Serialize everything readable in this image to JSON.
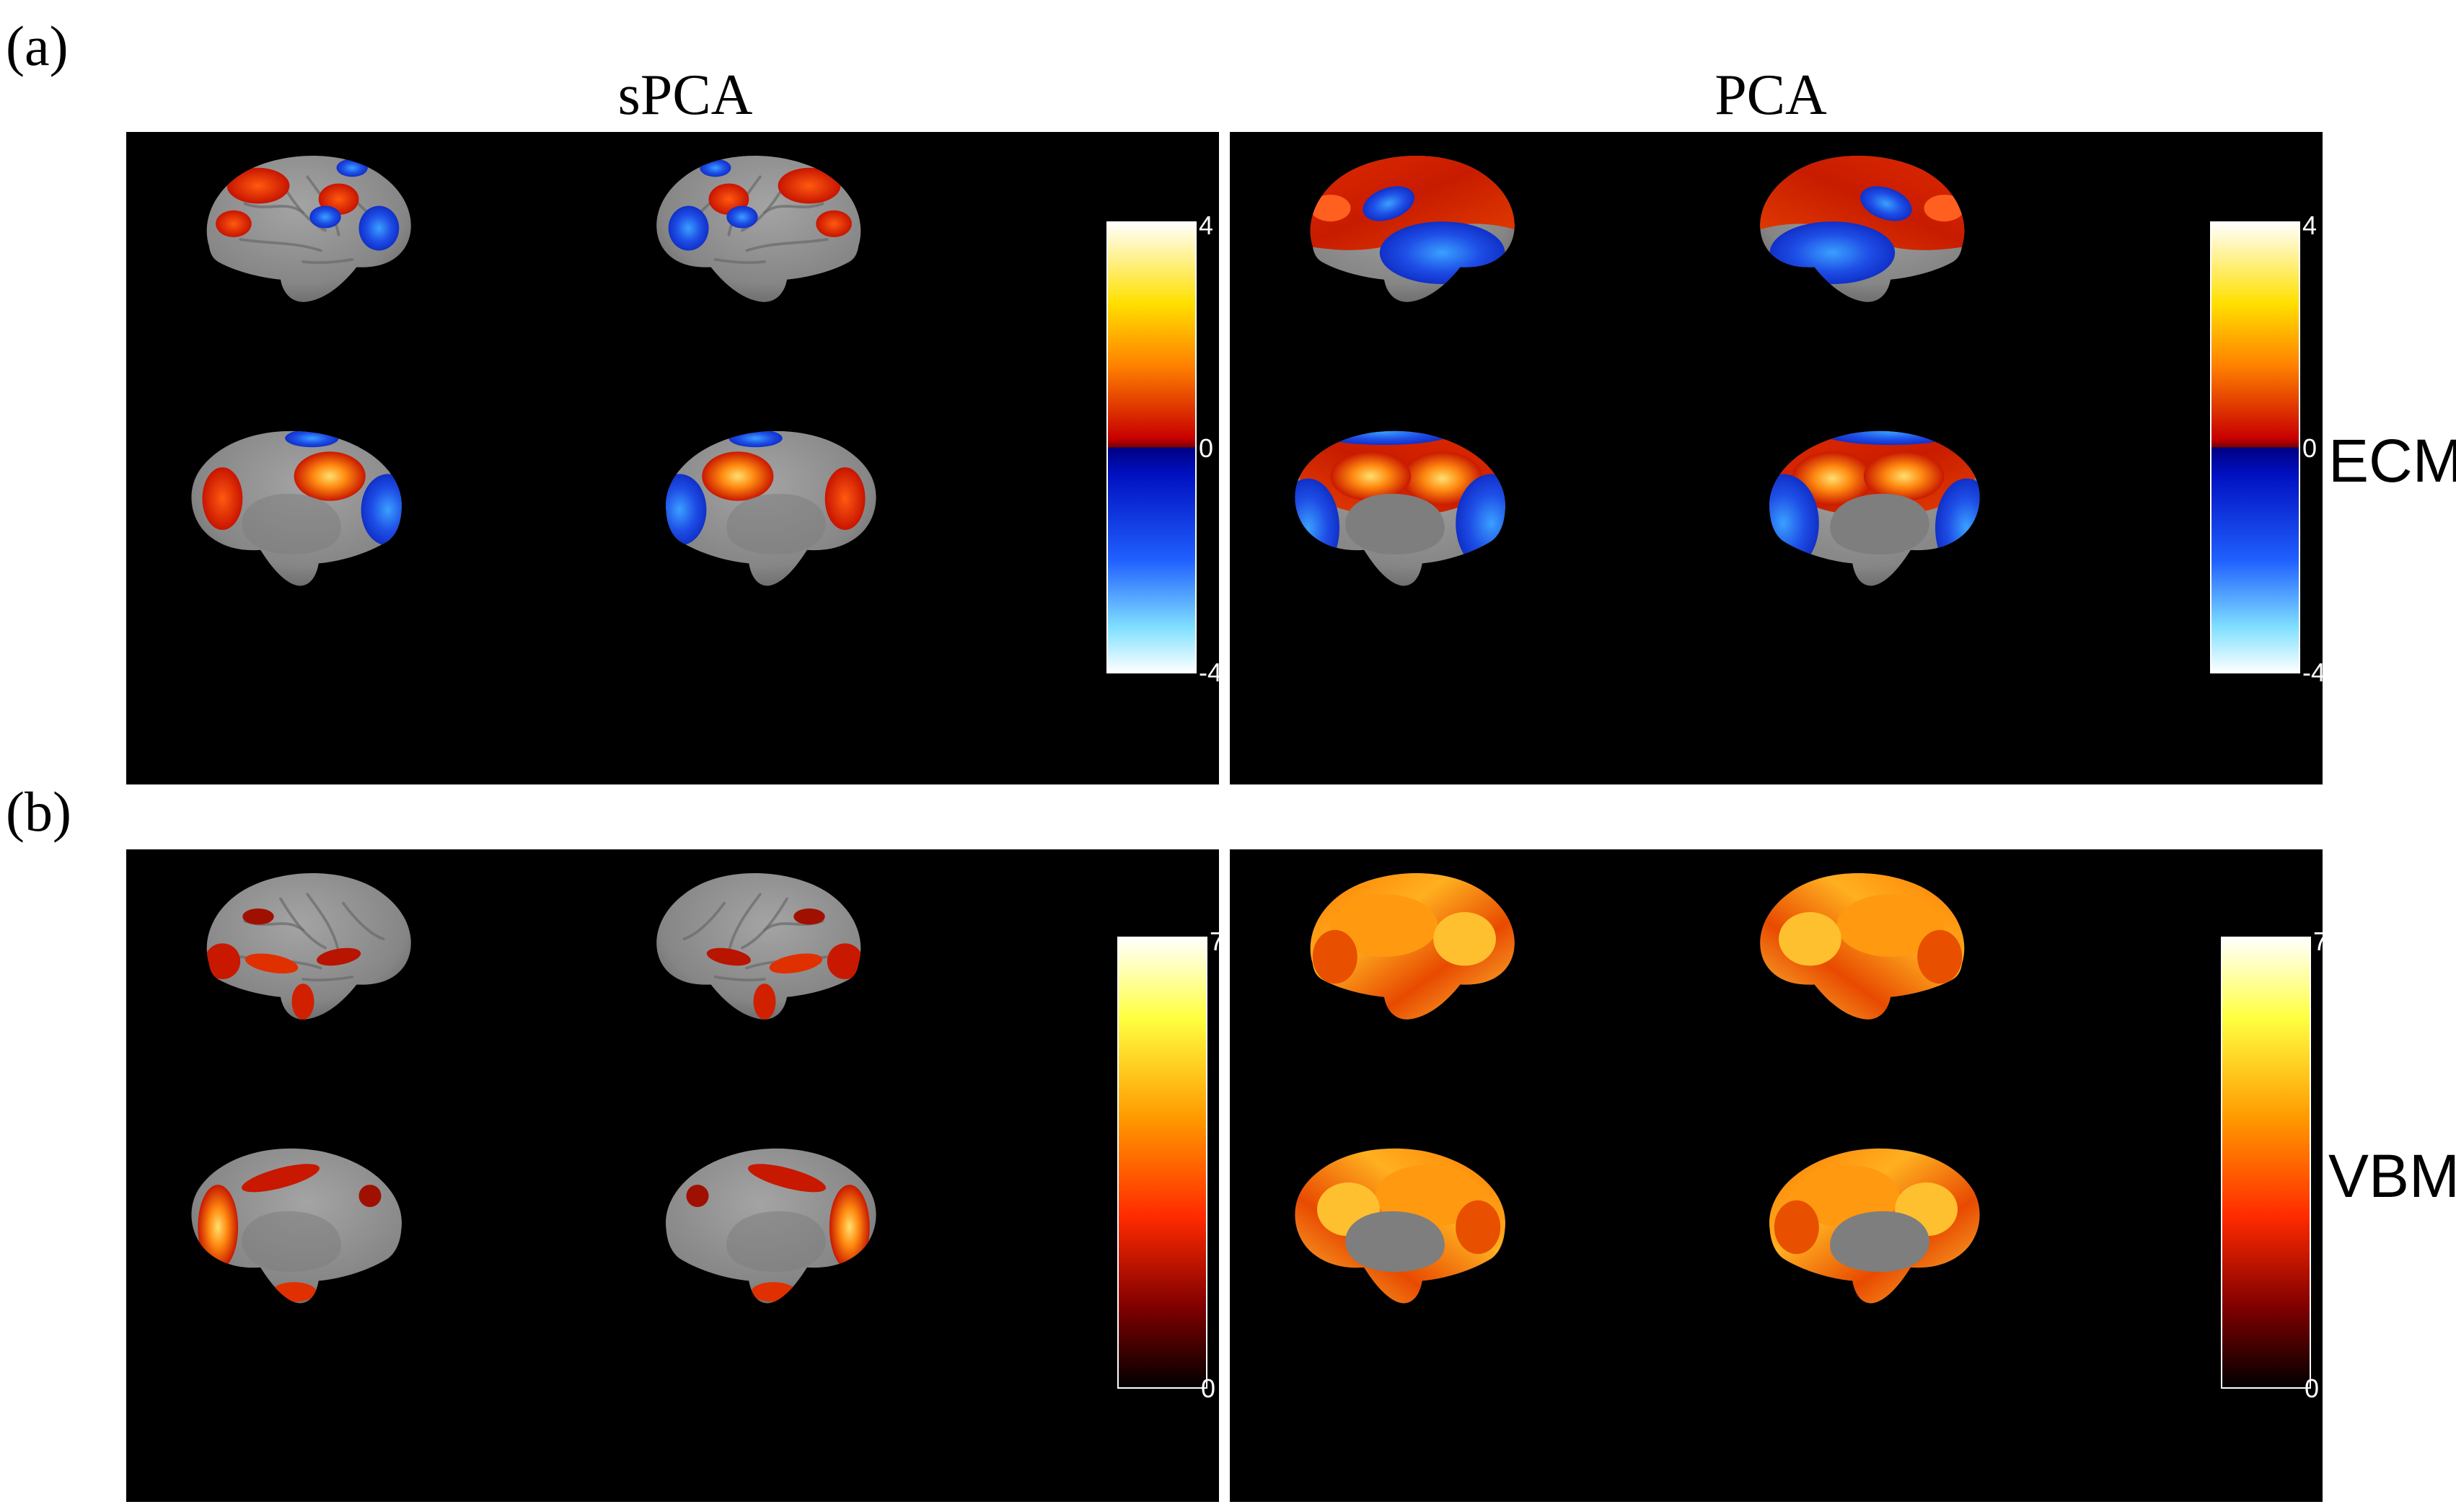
{
  "figure": {
    "panels": [
      {
        "label": "(a)",
        "measure": "ECM",
        "colorbar": {
          "top_tick": "4",
          "mid_tick": "0",
          "bottom_tick": "-4",
          "scheme": "diverging"
        },
        "methods": [
          {
            "title": "sPCA",
            "map": "sparse"
          },
          {
            "title": "PCA",
            "map": "dense"
          }
        ]
      },
      {
        "label": "(b)",
        "measure": "VBM",
        "colorbar": {
          "top_tick": "7",
          "bottom_tick": "0",
          "scheme": "hot"
        },
        "methods": [
          {
            "title": "",
            "map": "sparse"
          },
          {
            "title": "",
            "map": "dense"
          }
        ]
      }
    ],
    "colors": {
      "background": "#000000",
      "cortex": "#8a8a8a",
      "positive": "#d42a00",
      "negative": "#1f3fe0",
      "hot_peak": "#ffd040"
    }
  }
}
